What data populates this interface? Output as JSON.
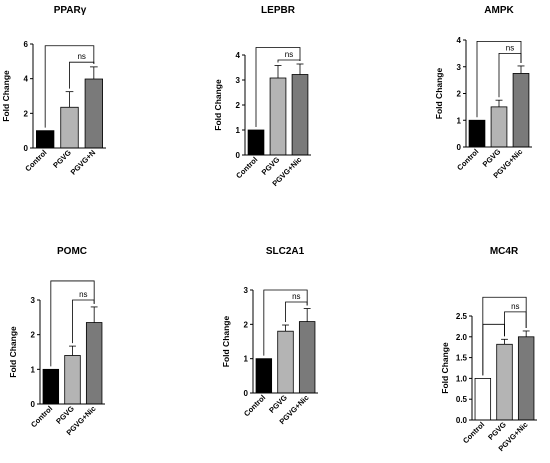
{
  "colors": {
    "control": "#000000",
    "pgvg": "#b4b4b4",
    "pgvg_nic": "#7a7a7a",
    "axis": "#000000",
    "bracket": "#000000"
  },
  "chart_data": [
    {
      "type": "bar",
      "title": "PPARγ",
      "ylabel": "Fold Change",
      "categories": [
        "Control",
        "PGVG",
        "PGVG+N"
      ],
      "values": [
        1.0,
        2.35,
        3.98
      ],
      "errors": [
        0,
        0.9,
        0.7
      ],
      "ylim": [
        0,
        6
      ],
      "yticks": [
        "0",
        "2",
        "4",
        "6"
      ],
      "ytick_values": [
        0,
        2,
        4,
        6
      ],
      "fills": [
        "#000000",
        "#b4b4b4",
        "#7a7a7a"
      ],
      "brackets": [
        {
          "from": 0,
          "to": 2,
          "y": 5.9,
          "label": ""
        },
        {
          "from": 1,
          "to": 2,
          "y": 4.95,
          "label": "ns"
        }
      ]
    },
    {
      "type": "bar",
      "title": "LEPBR",
      "ylabel": "Fold Change",
      "categories": [
        "Control",
        "PGVG",
        "PGVG+Nic"
      ],
      "values": [
        1.0,
        3.08,
        3.22
      ],
      "errors": [
        0,
        0.5,
        0.42
      ],
      "ylim": [
        0,
        4
      ],
      "yticks": [
        "0",
        "1",
        "2",
        "3",
        "4"
      ],
      "ytick_values": [
        0,
        1,
        2,
        3,
        4
      ],
      "fills": [
        "#000000",
        "#b4b4b4",
        "#7a7a7a"
      ],
      "brackets": [
        {
          "from": 0,
          "to": 2,
          "y": 4.3,
          "label": ""
        },
        {
          "from": 1,
          "to": 2,
          "y": 3.8,
          "label": "ns"
        }
      ]
    },
    {
      "type": "bar",
      "title": "AMPK",
      "ylabel": "Fold Change",
      "categories": [
        "Control",
        "PGVG",
        "PGVG+Nic"
      ],
      "values": [
        1.0,
        1.5,
        2.75
      ],
      "errors": [
        0,
        0.25,
        0.28
      ],
      "ylim": [
        0,
        4
      ],
      "yticks": [
        "0",
        "1",
        "2",
        "3",
        "4"
      ],
      "ytick_values": [
        0,
        1,
        2,
        3,
        4
      ],
      "fills": [
        "#000000",
        "#b4b4b4",
        "#7a7a7a"
      ],
      "brackets": [
        {
          "from": 0,
          "to": 2,
          "y": 3.95,
          "label": ""
        },
        {
          "from": 1,
          "to": 2,
          "y": 3.5,
          "label": "ns"
        }
      ]
    },
    {
      "type": "bar",
      "title": "POMC",
      "ylabel": "Fold Change",
      "categories": [
        "Control",
        "PGVG",
        "PGVG+Nic"
      ],
      "values": [
        1.0,
        1.4,
        2.35
      ],
      "errors": [
        0,
        0.27,
        0.45
      ],
      "ylim": [
        0,
        3
      ],
      "yticks": [
        "0",
        "1",
        "2",
        "3"
      ],
      "ytick_values": [
        0,
        1,
        2,
        3
      ],
      "fills": [
        "#000000",
        "#b4b4b4",
        "#7a7a7a"
      ],
      "brackets": [
        {
          "from": 0,
          "to": 2,
          "y": 3.55,
          "label": ""
        },
        {
          "from": 1,
          "to": 2,
          "y": 3.0,
          "label": "ns"
        }
      ]
    },
    {
      "type": "bar",
      "title": "SLC2A1",
      "ylabel": "Fold Change",
      "categories": [
        "Control",
        "PGVG",
        "PGVG+Nic"
      ],
      "values": [
        1.0,
        1.8,
        2.08
      ],
      "errors": [
        0,
        0.18,
        0.38
      ],
      "ylim": [
        0,
        3
      ],
      "yticks": [
        "0",
        "1",
        "2",
        "3"
      ],
      "ytick_values": [
        0,
        1,
        2,
        3
      ],
      "fills": [
        "#000000",
        "#b4b4b4",
        "#7a7a7a"
      ],
      "brackets": [
        {
          "from": 0,
          "to": 2,
          "y": 3.0,
          "label": ""
        },
        {
          "from": 1,
          "to": 2,
          "y": 2.65,
          "label": "ns"
        }
      ]
    },
    {
      "type": "bar",
      "title": "MC4R",
      "ylabel": "Fold Change",
      "categories": [
        "Control",
        "PGVG",
        "PGVG+Nic"
      ],
      "values": [
        1.0,
        1.82,
        2.0
      ],
      "errors": [
        0,
        0.12,
        0.14
      ],
      "ylim": [
        0,
        2.5
      ],
      "yticks": [
        "0.0",
        "0.5",
        "1.0",
        "1.5",
        "2.0",
        "2.5"
      ],
      "ytick_values": [
        0,
        0.5,
        1,
        1.5,
        2,
        2.5
      ],
      "fills": [
        "#ffffff",
        "#b4b4b4",
        "#7a7a7a"
      ],
      "brackets": [
        {
          "from": 0,
          "to": 2,
          "y": 2.95,
          "label": ""
        },
        {
          "from": 0,
          "to": 1,
          "y": 2.3,
          "label": ""
        },
        {
          "from": 1,
          "to": 2,
          "y": 2.6,
          "label": "ns"
        }
      ]
    }
  ]
}
